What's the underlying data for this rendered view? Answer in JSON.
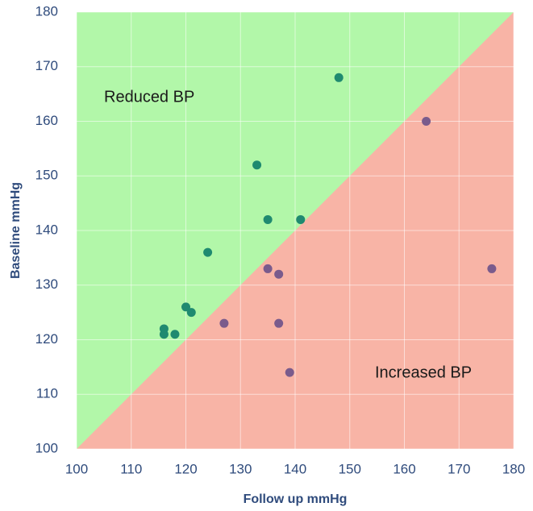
{
  "chart_data": {
    "type": "scatter",
    "xlabel": "Follow up mmHg",
    "ylabel": "Baseline mmHg",
    "annotations": [
      "Reduced BP",
      "Increased BP"
    ],
    "xlim": [
      100,
      180
    ],
    "ylim": [
      100,
      180
    ],
    "xticks": [
      100,
      110,
      120,
      130,
      140,
      150,
      160,
      170,
      180
    ],
    "yticks": [
      100,
      110,
      120,
      130,
      140,
      150,
      160,
      170,
      180
    ],
    "grid": true,
    "region_colors": [
      "#b2f7a9",
      "#f8b4a6"
    ],
    "series": [
      {
        "color": "#1f8a70",
        "x": [
          148,
          133,
          135,
          141,
          124,
          120,
          121,
          116,
          116,
          118
        ],
        "values": [
          168,
          152,
          142,
          142,
          136,
          126,
          125,
          122,
          121,
          121
        ]
      },
      {
        "color": "#7a5b8c",
        "x": [
          164,
          176,
          135,
          137,
          127,
          137,
          139
        ],
        "values": [
          160,
          133,
          133,
          132,
          123,
          123,
          114
        ]
      }
    ]
  }
}
